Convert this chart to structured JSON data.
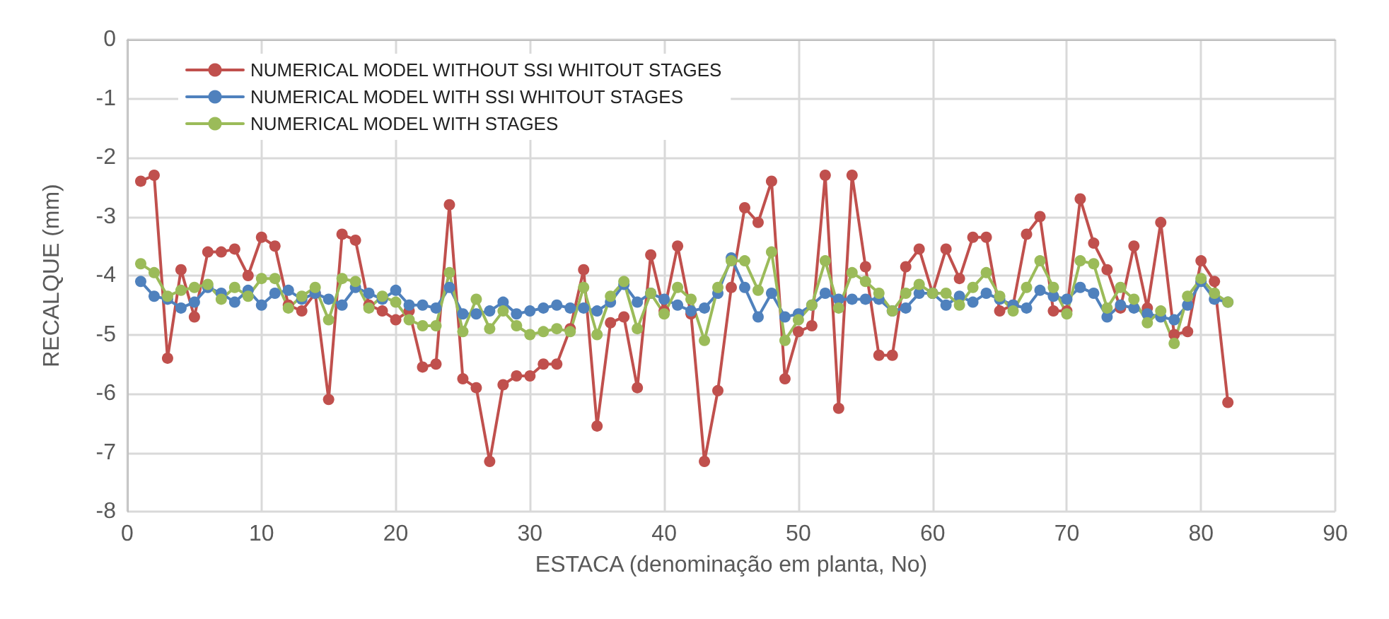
{
  "chart_data": {
    "type": "line",
    "xlabel": "ESTACA (denominação em planta, No)",
    "ylabel": "RECALQUE (mm)",
    "x": [
      1,
      2,
      3,
      4,
      5,
      6,
      7,
      8,
      9,
      10,
      11,
      12,
      13,
      14,
      15,
      16,
      17,
      18,
      19,
      20,
      21,
      22,
      23,
      24,
      25,
      26,
      27,
      28,
      29,
      30,
      31,
      32,
      33,
      34,
      35,
      36,
      37,
      38,
      39,
      40,
      41,
      42,
      43,
      44,
      45,
      46,
      47,
      48,
      49,
      50,
      51,
      52,
      53,
      54,
      55,
      56,
      57,
      58,
      59,
      60,
      61,
      62,
      63,
      64,
      65,
      66,
      67,
      68,
      69,
      70,
      71,
      72,
      73,
      74,
      75,
      76,
      77,
      78,
      79,
      80,
      81,
      82
    ],
    "series": [
      {
        "name": "NUMERICAL MODEL WITHOUT SSI WHITOUT STAGES",
        "color": "#c0504d",
        "values": [
          -2.4,
          -2.3,
          -5.4,
          -3.9,
          -4.7,
          -3.6,
          -3.6,
          -3.55,
          -4.0,
          -3.35,
          -3.5,
          -4.5,
          -4.6,
          -4.3,
          -6.1,
          -3.3,
          -3.4,
          -4.5,
          -4.6,
          -4.75,
          -4.6,
          -5.55,
          -5.5,
          -2.8,
          -5.75,
          -5.9,
          -7.15,
          -5.85,
          -5.7,
          -5.7,
          -5.5,
          -5.5,
          -4.9,
          -3.9,
          -6.55,
          -4.8,
          -4.7,
          -5.9,
          -3.65,
          -4.6,
          -3.5,
          -4.65,
          -7.15,
          -5.95,
          -4.2,
          -2.85,
          -3.1,
          -2.4,
          -5.75,
          -4.95,
          -4.85,
          -2.3,
          -6.25,
          -2.3,
          -3.85,
          -5.35,
          -5.35,
          -3.85,
          -3.55,
          -4.3,
          -3.55,
          -4.05,
          -3.35,
          -3.35,
          -4.6,
          -4.5,
          -3.3,
          -3.0,
          -4.6,
          -4.6,
          -2.7,
          -3.45,
          -3.9,
          -4.55,
          -3.5,
          -4.55,
          -3.1,
          -5.0,
          -4.95,
          -3.75,
          -4.1,
          -6.15
        ]
      },
      {
        "name": "NUMERICAL MODEL WITH SSI WHITOUT STAGES",
        "color": "#4f81bd",
        "values": [
          -4.1,
          -4.35,
          -4.4,
          -4.55,
          -4.45,
          -4.2,
          -4.3,
          -4.45,
          -4.25,
          -4.5,
          -4.3,
          -4.25,
          -4.4,
          -4.3,
          -4.4,
          -4.5,
          -4.2,
          -4.3,
          -4.4,
          -4.25,
          -4.5,
          -4.5,
          -4.55,
          -4.2,
          -4.65,
          -4.65,
          -4.6,
          -4.45,
          -4.65,
          -4.6,
          -4.55,
          -4.5,
          -4.55,
          -4.55,
          -4.6,
          -4.45,
          -4.15,
          -4.45,
          -4.3,
          -4.4,
          -4.5,
          -4.6,
          -4.55,
          -4.3,
          -3.7,
          -4.2,
          -4.7,
          -4.3,
          -4.7,
          -4.65,
          -4.5,
          -4.3,
          -4.4,
          -4.4,
          -4.4,
          -4.4,
          -4.6,
          -4.55,
          -4.3,
          -4.3,
          -4.5,
          -4.35,
          -4.45,
          -4.3,
          -4.4,
          -4.5,
          -4.55,
          -4.25,
          -4.35,
          -4.4,
          -4.2,
          -4.3,
          -4.7,
          -4.5,
          -4.55,
          -4.65,
          -4.7,
          -4.75,
          -4.5,
          -4.1,
          -4.4,
          -4.45
        ]
      },
      {
        "name": "NUMERICAL MODEL WITH STAGES",
        "color": "#9bbb59",
        "values": [
          -3.8,
          -3.95,
          -4.35,
          -4.25,
          -4.2,
          -4.15,
          -4.4,
          -4.2,
          -4.35,
          -4.05,
          -4.05,
          -4.55,
          -4.35,
          -4.2,
          -4.75,
          -4.05,
          -4.1,
          -4.55,
          -4.35,
          -4.45,
          -4.75,
          -4.85,
          -4.85,
          -3.95,
          -4.95,
          -4.4,
          -4.9,
          -4.6,
          -4.85,
          -5.0,
          -4.95,
          -4.9,
          -4.95,
          -4.2,
          -5.0,
          -4.35,
          -4.1,
          -4.9,
          -4.3,
          -4.65,
          -4.2,
          -4.4,
          -5.1,
          -4.2,
          -3.75,
          -3.75,
          -4.25,
          -3.6,
          -5.1,
          -4.75,
          -4.5,
          -3.75,
          -4.55,
          -3.95,
          -4.1,
          -4.3,
          -4.6,
          -4.3,
          -4.15,
          -4.3,
          -4.3,
          -4.5,
          -4.2,
          -3.95,
          -4.35,
          -4.6,
          -4.2,
          -3.75,
          -4.2,
          -4.65,
          -3.75,
          -3.8,
          -4.55,
          -4.2,
          -4.4,
          -4.8,
          -4.6,
          -5.15,
          -4.35,
          -4.05,
          -4.3,
          -4.45
        ]
      }
    ],
    "xlim": [
      0,
      90
    ],
    "xticks": [
      0,
      10,
      20,
      30,
      40,
      50,
      60,
      70,
      80,
      90
    ],
    "ylim": [
      -8,
      0
    ],
    "yticks": [
      -8,
      -7,
      -6,
      -5,
      -4,
      -3,
      -2,
      -1,
      0
    ],
    "grid": true,
    "legend": "top left",
    "marker": "circle",
    "line_style": "solid"
  }
}
